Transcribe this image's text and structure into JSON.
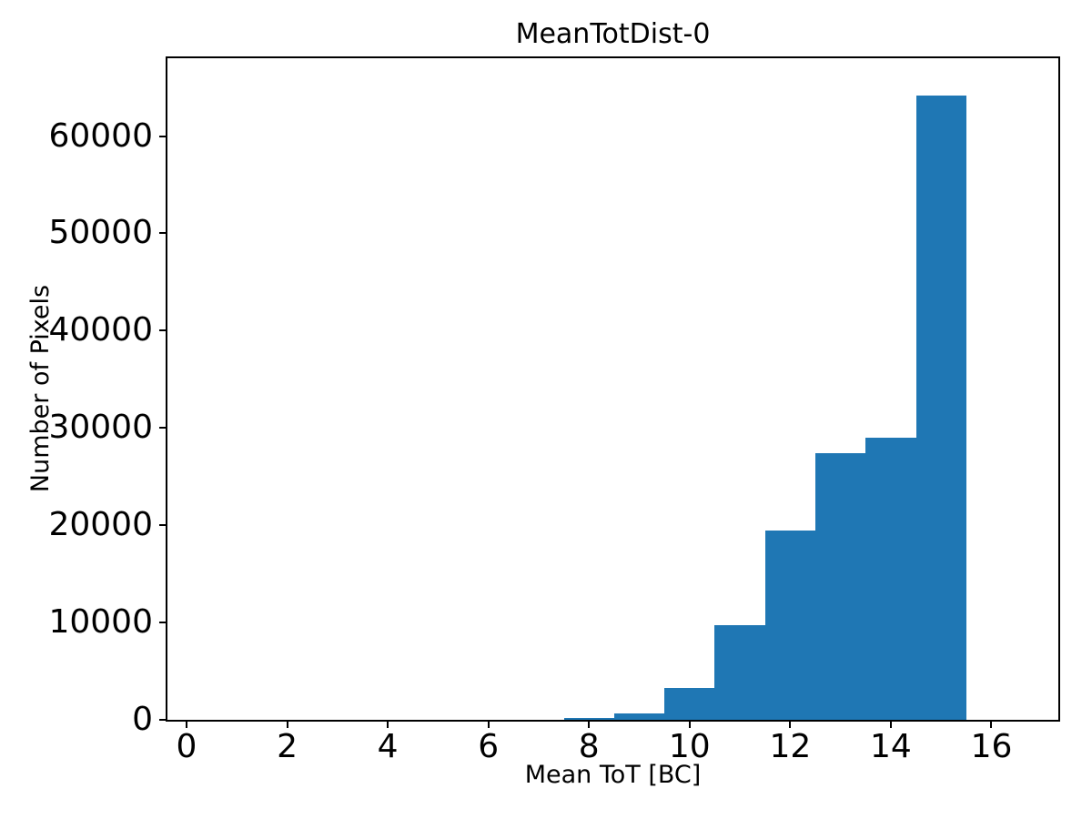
{
  "figure": {
    "background_color": "#ffffff",
    "text_color": "#000000"
  },
  "chart_data": {
    "type": "bar",
    "subtype": "histogram",
    "title": "MeanTotDist-0",
    "xlabel": "Mean ToT [BC]",
    "ylabel": "Number of Pixels",
    "bar_color": "#1f77b4",
    "grid": false,
    "legend": null,
    "bin_edges": [
      0.5,
      1.5,
      2.5,
      3.5,
      4.5,
      5.5,
      6.5,
      7.5,
      8.5,
      9.5,
      10.5,
      11.5,
      12.5,
      13.5,
      14.5,
      15.5,
      16.5
    ],
    "counts": [
      0,
      0,
      0,
      0,
      0,
      0,
      0,
      200,
      650,
      3300,
      9700,
      19500,
      27400,
      29000,
      64200,
      0
    ],
    "xlim": [
      -0.38,
      17.33
    ],
    "ylim": [
      0,
      68000
    ],
    "xticks": [
      0,
      2,
      4,
      6,
      8,
      10,
      12,
      14,
      16
    ],
    "yticks": [
      0,
      10000,
      20000,
      30000,
      40000,
      50000,
      60000
    ]
  }
}
